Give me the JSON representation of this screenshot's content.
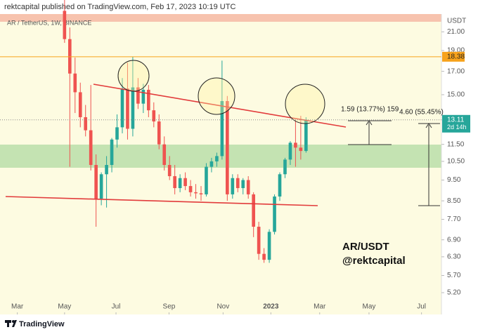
{
  "header": "rektcapital published on TradingView.com, Feb 17, 2023 10:19 UTC",
  "footer": "TradingView",
  "chart_data": {
    "type": "candlestick",
    "symbol": "AR / TetherUS, 1W, BINANCE",
    "y_axis_label": "USDT",
    "log_scale": true,
    "up_color": "#26a69a",
    "down_color": "#ef5350",
    "x": [
      0,
      1,
      2,
      3,
      4,
      5,
      6,
      7,
      8,
      9,
      10,
      11,
      12,
      13,
      14,
      15,
      16,
      17,
      18,
      19,
      20,
      21,
      22,
      23,
      24,
      25,
      26,
      27,
      28,
      29,
      30,
      31,
      32,
      33,
      34,
      35,
      36,
      37,
      38,
      39,
      40,
      41,
      42,
      43,
      44,
      45,
      46
    ],
    "open": [
      23.5,
      20.2,
      16.8,
      15.2,
      13.3,
      12.4,
      10.3,
      8.6,
      9.8,
      10.3,
      11.8,
      12.6,
      15.5,
      12.5,
      15.6,
      14.3,
      15.4,
      13.8,
      13.0,
      11.5,
      10.3,
      9.7,
      9.1,
      9.6,
      9.2,
      8.9,
      8.85,
      8.8,
      10.2,
      10.5,
      10.8,
      14.5,
      8.8,
      9.6,
      9.1,
      9.5,
      8.8,
      7.4,
      6.4,
      6.2,
      7.2,
      8.7,
      9.8,
      10.6,
      11.6,
      11.3,
      11.1
    ],
    "high": [
      25,
      21.5,
      18.3,
      16.0,
      14.2,
      15.8,
      10.9,
      9.9,
      10.8,
      11.9,
      13.5,
      16.4,
      17.8,
      18.4,
      16.4,
      15.9,
      15.8,
      14.4,
      13.5,
      12.0,
      10.8,
      10.3,
      9.8,
      9.9,
      9.5,
      9.3,
      9.2,
      10.4,
      10.7,
      11.0,
      18.0,
      14.9,
      9.8,
      9.8,
      9.6,
      9.7,
      8.9,
      7.6,
      6.6,
      7.3,
      8.8,
      9.9,
      10.7,
      11.7,
      13.1,
      13.4,
      13.3
    ],
    "low": [
      19.8,
      10.2,
      13.6,
      12.6,
      12.0,
      10.0,
      7.4,
      8.3,
      8.2,
      9.9,
      11.3,
      12.2,
      11.8,
      12.0,
      13.9,
      13.6,
      13.3,
      12.6,
      11.2,
      10.0,
      9.5,
      8.8,
      8.9,
      9.0,
      8.7,
      8.6,
      8.5,
      8.7,
      9.9,
      10.2,
      10.6,
      8.5,
      8.6,
      8.9,
      8.8,
      8.6,
      7.0,
      6.2,
      6.1,
      6.1,
      7.1,
      8.5,
      9.6,
      10.3,
      10.2,
      10.6,
      11.0
    ],
    "close": [
      20.2,
      16.8,
      15.2,
      13.3,
      12.4,
      10.3,
      8.6,
      9.8,
      10.3,
      11.8,
      12.6,
      15.5,
      12.5,
      15.6,
      14.3,
      15.4,
      13.8,
      13.0,
      11.5,
      10.3,
      9.7,
      9.1,
      9.6,
      9.2,
      8.9,
      8.85,
      8.8,
      10.2,
      10.5,
      10.8,
      14.5,
      8.8,
      9.6,
      9.1,
      9.5,
      8.8,
      7.4,
      6.4,
      6.2,
      7.2,
      8.7,
      9.8,
      10.6,
      11.6,
      11.3,
      11.1,
      13.11
    ],
    "xlim": [
      -12.3,
      71.8
    ],
    "xticks": [
      {
        "value": -9,
        "label": "Mar"
      },
      {
        "value": 0,
        "label": "May"
      },
      {
        "value": 9.8,
        "label": "Jul"
      },
      {
        "value": 19.9,
        "label": "Sep"
      },
      {
        "value": 30.2,
        "label": "Nov"
      },
      {
        "value": 39.3,
        "label": "2023"
      },
      {
        "value": 48.6,
        "label": "Mar"
      },
      {
        "value": 58,
        "label": "May"
      },
      {
        "value": 68,
        "label": "Jul"
      }
    ],
    "ylim": [
      4.68,
      23.1
    ],
    "yticks": [
      {
        "value": 21,
        "label": "21.00"
      },
      {
        "value": 19,
        "label": "19.00"
      },
      {
        "value": 17,
        "label": "17.00"
      },
      {
        "value": 15,
        "label": "15.00"
      },
      {
        "value": 11.5,
        "label": "11.50"
      },
      {
        "value": 10.5,
        "label": "10.50"
      },
      {
        "value": 9.5,
        "label": "9.50"
      },
      {
        "value": 8.5,
        "label": "8.50"
      },
      {
        "value": 7.7,
        "label": "7.70"
      },
      {
        "value": 6.9,
        "label": "6.90"
      },
      {
        "value": 6.3,
        "label": "6.30"
      },
      {
        "value": 5.7,
        "label": "5.70"
      },
      {
        "value": 5.2,
        "label": "5.20"
      }
    ],
    "level": 18.38,
    "level_color": "#f7a21b",
    "last_price": 13.11,
    "countdown": "2d 14h",
    "measure_1": "1.59 (13.77%) 159",
    "measure_2": "4.60 (55.45%)",
    "watermark_1": "AR/USDT",
    "watermark_2": "@rektcapital"
  }
}
